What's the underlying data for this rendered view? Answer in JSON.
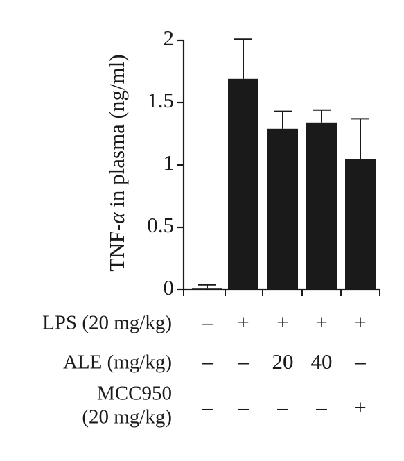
{
  "chart_data": {
    "type": "bar",
    "title": "",
    "ylabel_prefix": "TNF-",
    "ylabel_symbol": "α",
    "ylabel_suffix": " in plasma (ng/ml)",
    "ylim": [
      0,
      2
    ],
    "yticks": [
      {
        "value": 0,
        "label": "0"
      },
      {
        "value": 0.5,
        "label": "0.5"
      },
      {
        "value": 1,
        "label": "1"
      },
      {
        "value": 1.5,
        "label": "1.5"
      },
      {
        "value": 2,
        "label": "2"
      }
    ],
    "grid": false,
    "bar_color": "#1a1a1a",
    "values": [
      0.01,
      1.69,
      1.29,
      1.34,
      1.05
    ],
    "errors": [
      0.03,
      0.32,
      0.14,
      0.1,
      0.32
    ],
    "treatment_rows": [
      {
        "label": "LPS (20 mg/kg)",
        "cells": [
          "–",
          "+",
          "+",
          "+",
          "+"
        ]
      },
      {
        "label": "ALE (mg/kg)",
        "cells": [
          "–",
          "–",
          "20",
          "40",
          "–"
        ]
      },
      {
        "label": "MCC950",
        "label2": "(20 mg/kg)",
        "cells": [
          "–",
          "–",
          "–",
          "–",
          "+"
        ]
      }
    ]
  }
}
